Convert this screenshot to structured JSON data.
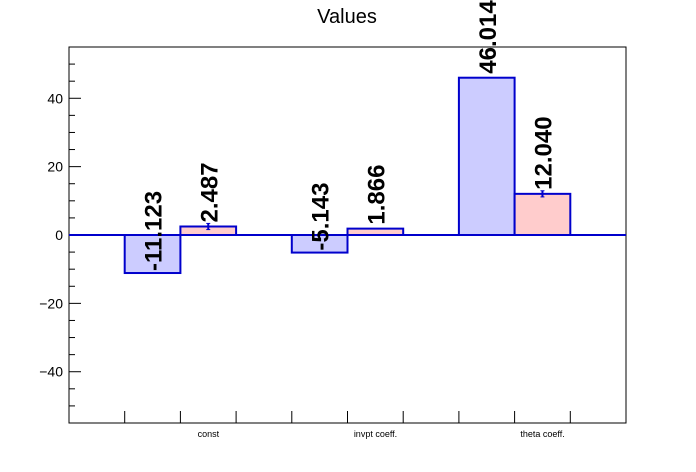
{
  "chart_data": {
    "type": "bar",
    "title": "Values",
    "xlabel": "",
    "ylabel": "",
    "categories": [
      "const",
      "invpt coeff.",
      "theta coeff."
    ],
    "series": [
      {
        "values": [
          -11.123,
          -5.143,
          46.014
        ],
        "labels": [
          "-11.123",
          "-5.143",
          "46.014"
        ],
        "fill": "#ccccff",
        "stroke": "#0000cc"
      },
      {
        "values": [
          2.487,
          1.866,
          12.04
        ],
        "labels": [
          "2.487",
          "1.866",
          "12.040"
        ],
        "errors": [
          0.9,
          0.0,
          0.9
        ],
        "fill": "#ffcccc",
        "stroke": "#0000cc"
      }
    ],
    "ylim": [
      -55,
      55
    ],
    "yticks": [
      -40,
      -20,
      0,
      20,
      40
    ],
    "ytick_labels": [
      "−40",
      "−20",
      "0",
      "20",
      "40"
    ],
    "grid": false,
    "legend": "none"
  }
}
